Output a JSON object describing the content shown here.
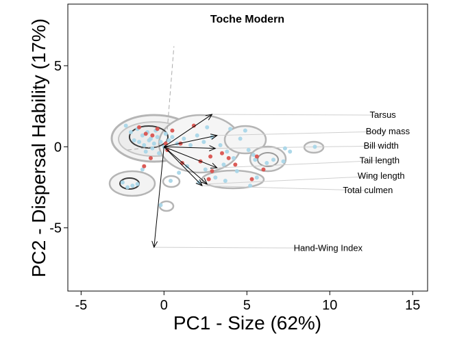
{
  "chart_data": {
    "type": "scatter",
    "title": "Toche Modern",
    "xlabel": "PC1 - Size (62%)",
    "ylabel": "PC2 - Dispersal Hability (17%)",
    "xlim": [
      -5.8,
      15.9
    ],
    "ylim": [
      -8.9,
      8.8
    ],
    "xticks": [
      -5,
      0,
      5,
      10,
      15
    ],
    "xtick_labels": [
      "-5",
      "0",
      "5",
      "10",
      "15"
    ],
    "yticks": [
      -5,
      0,
      5
    ],
    "ytick_labels": [
      "-5",
      "0",
      "5"
    ],
    "grid": false,
    "colors": {
      "series_a": "#a9d6e8",
      "series_b": "#d9534f",
      "contour_outer": "#b5b5b5",
      "contour_inner": "#3a3a3a",
      "guide_line": "#cfcfcf"
    },
    "vectors": [
      {
        "label": "Tarsus",
        "x": 2.9,
        "y": 2.0,
        "label_x": 13.2,
        "label_y": 1.95
      },
      {
        "label": "Body mass",
        "x": 3.2,
        "y": 0.7,
        "label_x": 13.5,
        "label_y": 0.95
      },
      {
        "label": "Bill width",
        "x": 3.1,
        "y": -0.1,
        "label_x": 13.1,
        "label_y": 0.05
      },
      {
        "label": "Tail length",
        "x": 3.2,
        "y": -1.3,
        "label_x": 13.0,
        "label_y": -0.85
      },
      {
        "label": "Wing length",
        "x": 2.6,
        "y": -2.3,
        "label_x": 13.1,
        "label_y": -1.8
      },
      {
        "label": "Total culmen",
        "x": 2.3,
        "y": -2.4,
        "label_x": 12.3,
        "label_y": -2.7
      },
      {
        "label": "Hand-Wing Index",
        "x": -0.6,
        "y": -6.2,
        "label_x": 9.9,
        "label_y": -6.25
      }
    ],
    "series": [
      {
        "marker": "series_a",
        "points": [
          [
            -2.3,
            1.3
          ],
          [
            -2.0,
            0.9
          ],
          [
            -1.8,
            0.4
          ],
          [
            -1.5,
            0.3
          ],
          [
            -1.3,
            0.7
          ],
          [
            -1.0,
            0.9
          ],
          [
            -0.8,
            0.5
          ],
          [
            -0.6,
            0.2
          ],
          [
            -0.4,
            0.6
          ],
          [
            -0.2,
            0.3
          ],
          [
            0.1,
            0.8
          ],
          [
            0.3,
            0.4
          ],
          [
            -1.6,
            1.1
          ],
          [
            -1.2,
            0.1
          ],
          [
            -0.9,
            0.4
          ],
          [
            -0.5,
            1.0
          ],
          [
            0.5,
            0.6
          ],
          [
            0.8,
            0.2
          ],
          [
            1.2,
            0.5
          ],
          [
            1.6,
            0.1
          ],
          [
            2.0,
            0.7
          ],
          [
            2.4,
            0.3
          ],
          [
            2.6,
            1.2
          ],
          [
            2.9,
            0.6
          ],
          [
            3.4,
            0.1
          ],
          [
            3.8,
            -0.3
          ],
          [
            4.2,
            -0.7
          ],
          [
            4.6,
            0.5
          ],
          [
            5.1,
            -0.2
          ],
          [
            5.5,
            -0.8
          ],
          [
            4.9,
            1.0
          ],
          [
            4.4,
            -1.5
          ],
          [
            3.6,
            -1.1
          ],
          [
            3.1,
            -1.9
          ],
          [
            2.5,
            -1.4
          ],
          [
            2.1,
            -2.2
          ],
          [
            3.7,
            -2.1
          ],
          [
            5.2,
            -2.4
          ],
          [
            5.6,
            -1.9
          ],
          [
            6.2,
            -1.0
          ],
          [
            6.6,
            -0.8
          ],
          [
            7.3,
            -0.1
          ],
          [
            7.6,
            -0.3
          ],
          [
            7.2,
            -0.9
          ],
          [
            9.1,
            0.0
          ],
          [
            -2.5,
            -2.2
          ],
          [
            -2.2,
            -2.5
          ],
          [
            -1.9,
            -2.4
          ],
          [
            -1.6,
            -2.3
          ],
          [
            -1.3,
            -1.4
          ],
          [
            -0.2,
            -3.6
          ],
          [
            0.4,
            -2.1
          ],
          [
            0.9,
            -1.6
          ],
          [
            1.4,
            -1.2
          ],
          [
            -1.1,
            -0.3
          ],
          [
            -0.7,
            -0.1
          ],
          [
            0.0,
            0.0
          ],
          [
            -0.3,
            -0.4
          ],
          [
            5.4,
            -0.5
          ],
          [
            4.0,
            1.1
          ]
        ]
      },
      {
        "marker": "series_b",
        "points": [
          [
            -1.5,
            1.2
          ],
          [
            -1.1,
            0.8
          ],
          [
            -0.4,
            1.1
          ],
          [
            0.5,
            1.0
          ],
          [
            0.1,
            0.2
          ],
          [
            -0.7,
            0.7
          ],
          [
            1.8,
            1.3
          ],
          [
            2.2,
            -0.9
          ],
          [
            2.8,
            -0.6
          ],
          [
            3.9,
            -0.7
          ],
          [
            4.3,
            -1.1
          ],
          [
            5.6,
            -0.6
          ],
          [
            3.5,
            -0.4
          ],
          [
            2.7,
            -2.0
          ],
          [
            5.3,
            -2.0
          ],
          [
            -1.2,
            -1.2
          ],
          [
            -0.8,
            -0.7
          ],
          [
            0.2,
            -0.2
          ],
          [
            1.1,
            -1.0
          ],
          [
            2.9,
            -1.5
          ],
          [
            1.0,
            0.2
          ],
          [
            6.0,
            -1.4
          ]
        ]
      }
    ]
  }
}
